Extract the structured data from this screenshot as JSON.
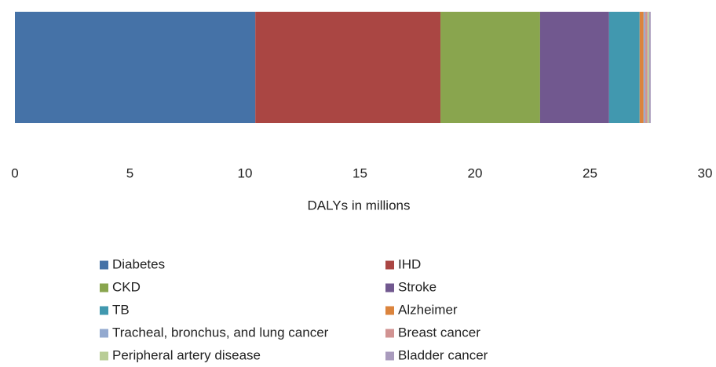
{
  "chart_data": {
    "type": "stacked_barh",
    "xlabel": "DALYs in millions",
    "xlim": [
      0,
      30
    ],
    "xticks": [
      0,
      5,
      10,
      15,
      20,
      25,
      30
    ],
    "grid": false,
    "legend": "bottom",
    "series": [
      {
        "name": "Diabetes",
        "color": "#4572a7",
        "values": [
          10.45
        ]
      },
      {
        "name": "IHD",
        "color": "#aa4643",
        "values": [
          8.05
        ]
      },
      {
        "name": "CKD",
        "color": "#89a54e",
        "values": [
          4.33
        ]
      },
      {
        "name": "Stroke",
        "color": "#71588f",
        "values": [
          3.0
        ]
      },
      {
        "name": "TB",
        "color": "#4198af",
        "values": [
          1.33
        ]
      },
      {
        "name": "Alzheimer",
        "color": "#db843d",
        "values": [
          0.17
        ]
      },
      {
        "name": "Tracheal, bronchus, and lung cancer",
        "color": "#93a9cf",
        "values": [
          0.07
        ]
      },
      {
        "name": "Breast cancer",
        "color": "#d19392",
        "values": [
          0.1
        ]
      },
      {
        "name": "Peripheral artery disease",
        "color": "#b9cd96",
        "values": [
          0.07
        ]
      },
      {
        "name": "Bladder cancer",
        "color": "#a99bbd",
        "values": [
          0.07
        ]
      }
    ]
  }
}
